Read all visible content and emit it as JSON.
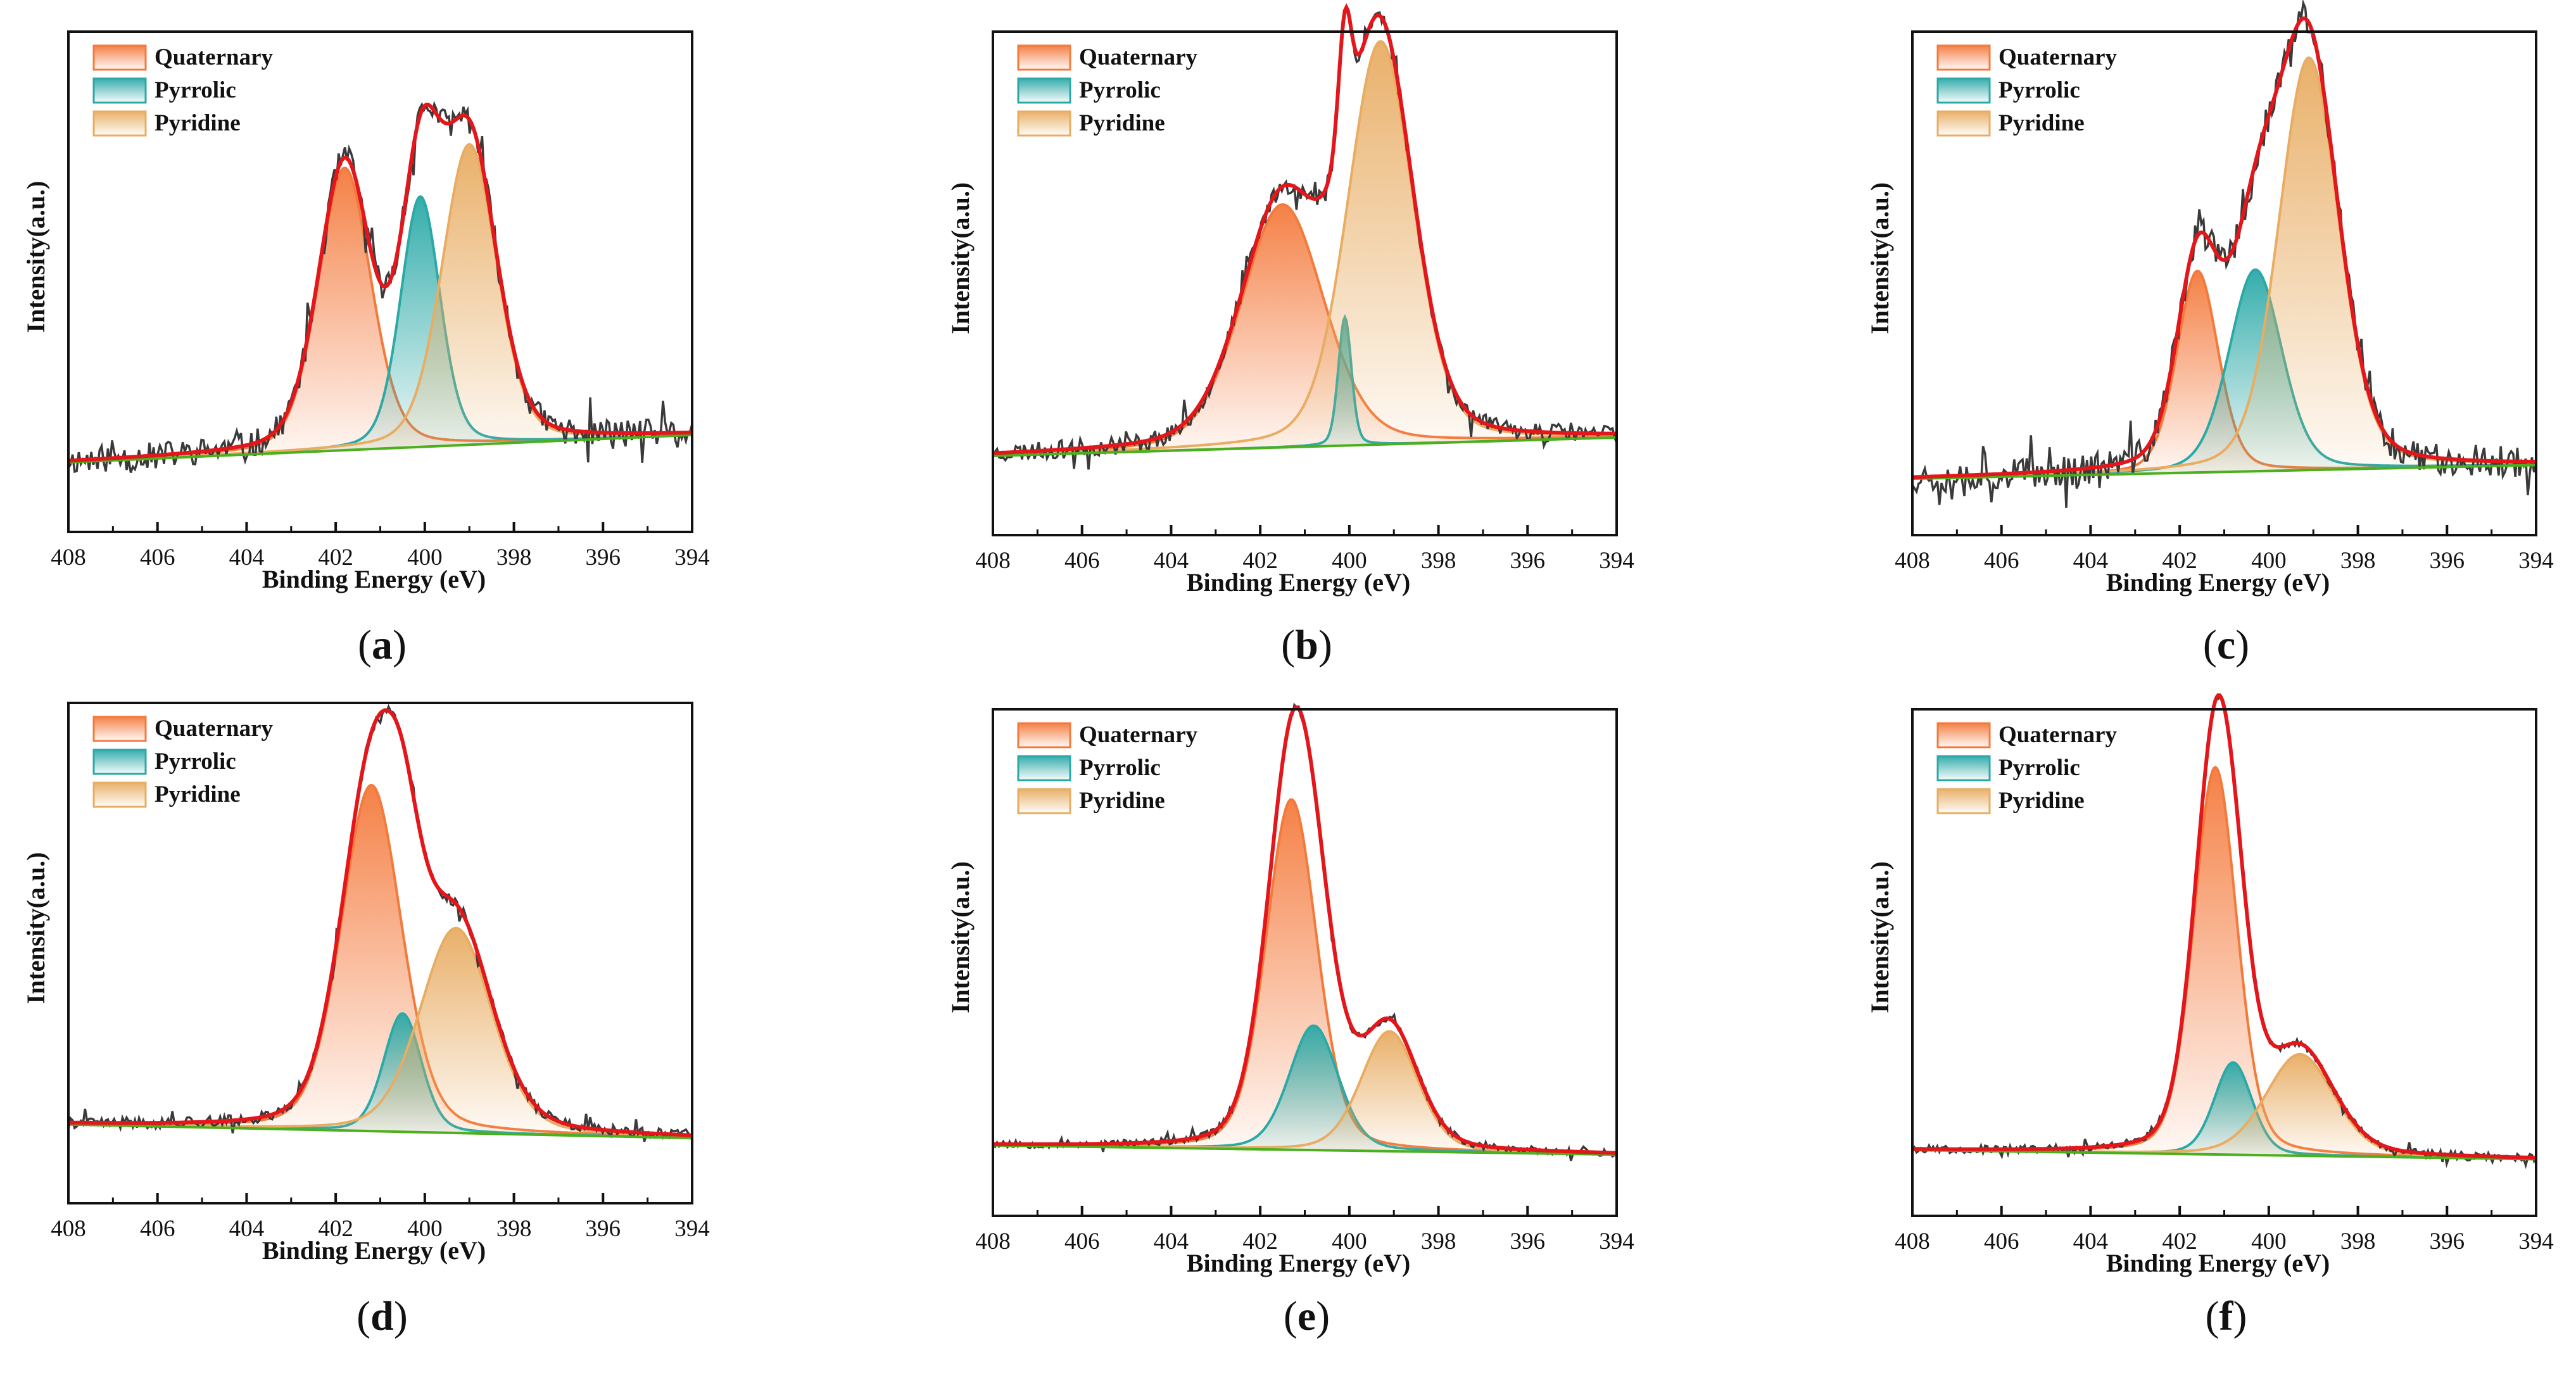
{
  "colors": {
    "quaternary": "#f47a3c",
    "pyrrolic": "#2aa9a7",
    "pyridine": "#e8ac62",
    "envelope": "#e3161b",
    "raw": "#3a3a3a",
    "background": "#4caf1c"
  },
  "chart_data": [
    {
      "type": "line",
      "label": "(a)",
      "xlabel": "Binding Energy (eV)",
      "ylabel": "Intensity(a.u.)",
      "xlim": [
        408,
        394
      ],
      "ylim": [
        0,
        1
      ],
      "x_ticks": [
        "408",
        "406",
        "404",
        "402",
        "400",
        "398",
        "396",
        "394"
      ],
      "legend": [
        "Quaternary",
        "Pyrrolic",
        "Pyridine"
      ],
      "background_line": [
        0.12,
        0.18
      ],
      "peaks": [
        {
          "name": "Quaternary",
          "center": 401.8,
          "height": 0.62,
          "fwhm": 1.4
        },
        {
          "name": "Pyrrolic",
          "center": 400.1,
          "height": 0.55,
          "fwhm": 1.05
        },
        {
          "name": "Pyridine",
          "center": 399.0,
          "height": 0.66,
          "fwhm": 1.45
        }
      ],
      "noise": 0.03,
      "seed": 11
    },
    {
      "type": "line",
      "label": "(b)",
      "xlabel": "Binding Energy (eV)",
      "ylabel": "Intensity(a.u.)",
      "xlim": [
        408,
        394
      ],
      "ylim": [
        0,
        1
      ],
      "x_ticks": [
        "408",
        "406",
        "404",
        "402",
        "400",
        "398",
        "396",
        "394"
      ],
      "legend": [
        "Quaternary",
        "Pyrrolic",
        "Pyridine"
      ],
      "background_line": [
        0.14,
        0.18
      ],
      "peaks": [
        {
          "name": "Quaternary",
          "center": 401.5,
          "height": 0.53,
          "fwhm": 2.2
        },
        {
          "name": "Pyrrolic",
          "center": 400.1,
          "height": 0.28,
          "fwhm": 0.35
        },
        {
          "name": "Pyridine",
          "center": 399.3,
          "height": 0.88,
          "fwhm": 1.75
        }
      ],
      "noise": 0.02,
      "seed": 23
    },
    {
      "type": "line",
      "label": "(c)",
      "xlabel": "Binding Energy (eV)",
      "ylabel": "Intensity(a.u.)",
      "xlim": [
        408,
        394
      ],
      "ylim": [
        0,
        1
      ],
      "x_ticks": [
        "408",
        "406",
        "404",
        "402",
        "400",
        "398",
        "396",
        "394"
      ],
      "legend": [
        "Quaternary",
        "Pyrrolic",
        "Pyridine"
      ],
      "background_line": [
        0.09,
        0.12
      ],
      "peaks": [
        {
          "name": "Quaternary",
          "center": 401.6,
          "height": 0.44,
          "fwhm": 1.1
        },
        {
          "name": "Pyrrolic",
          "center": 400.3,
          "height": 0.44,
          "fwhm": 1.4
        },
        {
          "name": "Pyridine",
          "center": 399.1,
          "height": 0.9,
          "fwhm": 1.6
        }
      ],
      "noise": 0.035,
      "seed": 37
    },
    {
      "type": "line",
      "label": "(d)",
      "xlabel": "Binding Energy (eV)",
      "ylabel": "Intensity(a.u.)",
      "xlim": [
        408,
        394
      ],
      "ylim": [
        0,
        1
      ],
      "x_ticks": [
        "408",
        "406",
        "404",
        "402",
        "400",
        "398",
        "396",
        "394"
      ],
      "legend": [
        "Quaternary",
        "Pyrrolic",
        "Pyridine"
      ],
      "background_line": [
        0.14,
        0.11
      ],
      "peaks": [
        {
          "name": "Quaternary",
          "center": 401.2,
          "height": 0.76,
          "fwhm": 1.6
        },
        {
          "name": "Pyrrolic",
          "center": 400.5,
          "height": 0.26,
          "fwhm": 1.0
        },
        {
          "name": "Pyridine",
          "center": 399.3,
          "height": 0.45,
          "fwhm": 1.9
        }
      ],
      "noise": 0.012,
      "seed": 41
    },
    {
      "type": "line",
      "label": "(e)",
      "xlabel": "Binding Energy (eV)",
      "ylabel": "Intensity(a.u.)",
      "xlim": [
        408,
        394
      ],
      "ylim": [
        0,
        1
      ],
      "x_ticks": [
        "408",
        "406",
        "404",
        "402",
        "400",
        "398",
        "396",
        "394"
      ],
      "legend": [
        "Quaternary",
        "Pyrrolic",
        "Pyridine"
      ],
      "background_line": [
        0.12,
        0.1
      ],
      "peaks": [
        {
          "name": "Quaternary",
          "center": 401.3,
          "height": 0.76,
          "fwhm": 1.35
        },
        {
          "name": "Pyrrolic",
          "center": 400.8,
          "height": 0.27,
          "fwhm": 1.3
        },
        {
          "name": "Pyridine",
          "center": 399.1,
          "height": 0.26,
          "fwhm": 1.5
        }
      ],
      "noise": 0.008,
      "seed": 53
    },
    {
      "type": "line",
      "label": "(f)",
      "xlabel": "Binding Energy (eV)",
      "ylabel": "Intensity(a.u.)",
      "xlim": [
        408,
        394
      ],
      "ylim": [
        0,
        1
      ],
      "x_ticks": [
        "408",
        "406",
        "404",
        "402",
        "400",
        "398",
        "396",
        "394"
      ],
      "legend": [
        "Quaternary",
        "Pyrrolic",
        "Pyridine"
      ],
      "background_line": [
        0.11,
        0.09
      ],
      "peaks": [
        {
          "name": "Quaternary",
          "center": 401.2,
          "height": 0.84,
          "fwhm": 1.15
        },
        {
          "name": "Pyrrolic",
          "center": 400.8,
          "height": 0.2,
          "fwhm": 1.0
        },
        {
          "name": "Pyridine",
          "center": 399.3,
          "height": 0.22,
          "fwhm": 1.8
        }
      ],
      "noise": 0.008,
      "seed": 67
    }
  ]
}
